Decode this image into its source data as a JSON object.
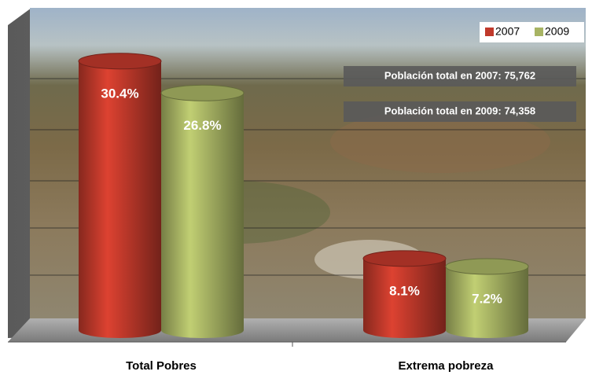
{
  "chart_data": {
    "type": "bar",
    "categories": [
      "Total Pobres",
      "Extrema pobreza"
    ],
    "series": [
      {
        "name": "2007",
        "color": "#c0392b",
        "values": [
          30.4,
          8.1
        ],
        "value_labels": [
          "30.4%",
          "8.1%"
        ]
      },
      {
        "name": "2009",
        "color": "#a8b464",
        "values": [
          26.8,
          7.2
        ],
        "value_labels": [
          "26.8%",
          "7.2%"
        ]
      }
    ],
    "annotations": [
      "Población total en 2007: 75,762",
      "Población total en 2009: 74,358"
    ],
    "ylim": [
      0,
      35
    ],
    "legend": "top-right"
  }
}
